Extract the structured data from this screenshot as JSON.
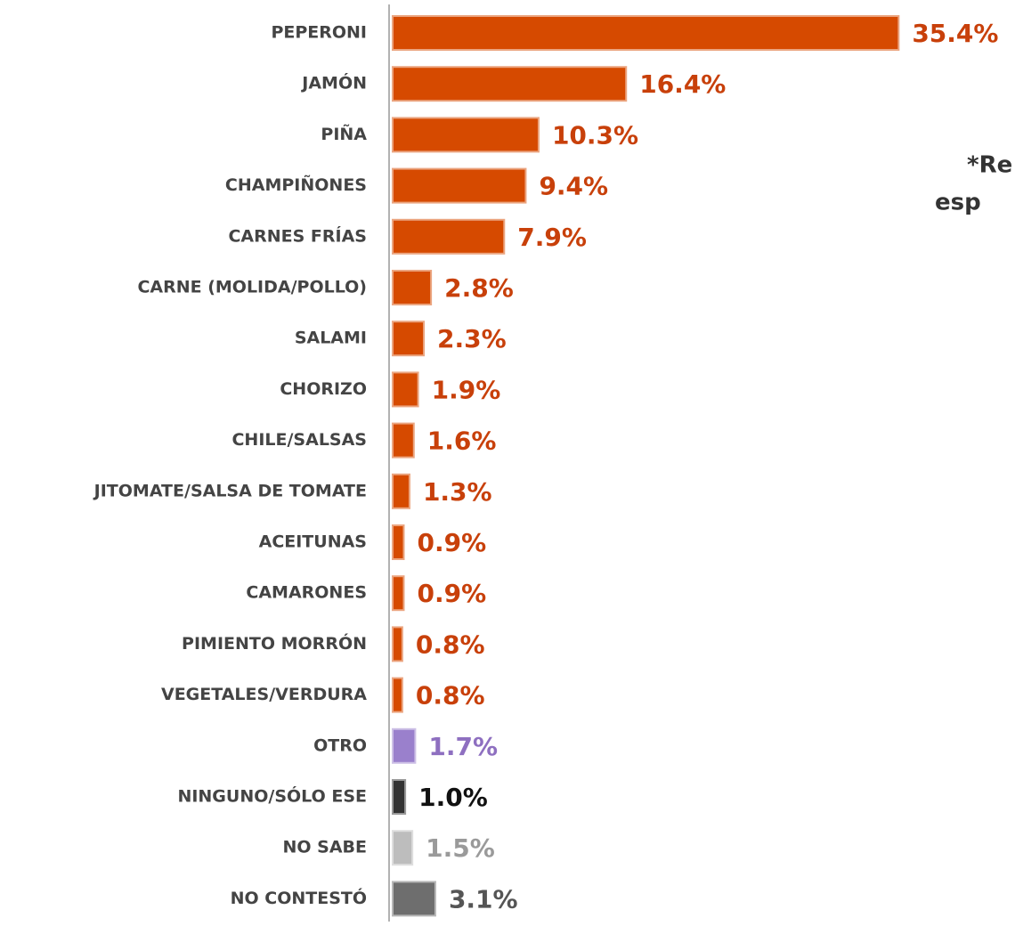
{
  "chart_data": {
    "type": "barh",
    "categories": [
      "PEPERONI",
      "JAMÓN",
      "PIÑA",
      "CHAMPIÑONES",
      "CARNES FRÍAS",
      "CARNE (MOLIDA/POLLO)",
      "SALAMI",
      "CHORIZO",
      "CHILE/SALSAS",
      "JITOMATE/SALSA DE TOMATE",
      "ACEITUNAS",
      "CAMARONES",
      "PIMIENTO MORRÓN",
      "VEGETALES/VERDURA",
      "OTRO",
      "NINGUNO/SÓLO ESE",
      "NO SABE",
      "NO CONTESTÓ"
    ],
    "values": [
      35.4,
      16.4,
      10.3,
      9.4,
      7.9,
      2.8,
      2.3,
      1.9,
      1.6,
      1.3,
      0.9,
      0.9,
      0.8,
      0.8,
      1.7,
      1.0,
      1.5,
      3.1
    ],
    "value_labels": [
      "35.4%",
      "16.4%",
      "10.3%",
      "9.4%",
      "7.9%",
      "2.8%",
      "2.3%",
      "1.9%",
      "1.6%",
      "1.3%",
      "0.9%",
      "0.9%",
      "0.8%",
      "0.8%",
      "1.7%",
      "1.0%",
      "1.5%",
      "3.1%"
    ],
    "colors": [
      "#d64a00",
      "#d64a00",
      "#d64a00",
      "#d64a00",
      "#d64a00",
      "#d64a00",
      "#d64a00",
      "#d64a00",
      "#d64a00",
      "#d64a00",
      "#d64a00",
      "#d64a00",
      "#d64a00",
      "#d64a00",
      "#9a80cc",
      "#333333",
      "#bdbdbd",
      "#6e6e6e"
    ],
    "label_colors": [
      "#c8400a",
      "#c8400a",
      "#c8400a",
      "#c8400a",
      "#c8400a",
      "#c8400a",
      "#c8400a",
      "#c8400a",
      "#c8400a",
      "#c8400a",
      "#c8400a",
      "#c8400a",
      "#c8400a",
      "#c8400a",
      "#8e6fc0",
      "#111111",
      "#9a9a9a",
      "#555555"
    ],
    "xlim": [
      0,
      36
    ],
    "annotation": [
      "*Re",
      "esp"
    ]
  }
}
